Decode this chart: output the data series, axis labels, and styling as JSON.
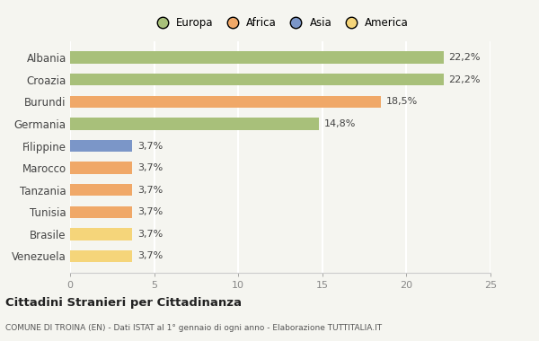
{
  "categories": [
    "Venezuela",
    "Brasile",
    "Tunisia",
    "Tanzania",
    "Marocco",
    "Filippine",
    "Germania",
    "Burundi",
    "Croazia",
    "Albania"
  ],
  "values": [
    3.7,
    3.7,
    3.7,
    3.7,
    3.7,
    3.7,
    14.8,
    18.5,
    22.2,
    22.2
  ],
  "labels": [
    "3,7%",
    "3,7%",
    "3,7%",
    "3,7%",
    "3,7%",
    "3,7%",
    "14,8%",
    "18,5%",
    "22,2%",
    "22,2%"
  ],
  "bar_colors": [
    "#f5d57a",
    "#f5d57a",
    "#f0a868",
    "#f0a868",
    "#f0a868",
    "#7b96c8",
    "#a8c07a",
    "#f0a868",
    "#a8c07a",
    "#a8c07a"
  ],
  "legend": [
    {
      "label": "Europa",
      "color": "#a8c07a"
    },
    {
      "label": "Africa",
      "color": "#f0a868"
    },
    {
      "label": "Asia",
      "color": "#7b96c8"
    },
    {
      "label": "America",
      "color": "#f5d57a"
    }
  ],
  "xlim": [
    0,
    25
  ],
  "xticks": [
    0,
    5,
    10,
    15,
    20,
    25
  ],
  "title": "Cittadini Stranieri per Cittadinanza",
  "subtitle": "COMUNE DI TROINA (EN) - Dati ISTAT al 1° gennaio di ogni anno - Elaborazione TUTTITALIA.IT",
  "background_color": "#f5f5f0",
  "grid_color": "#ffffff",
  "label_color": "#444444",
  "tick_color": "#888888"
}
